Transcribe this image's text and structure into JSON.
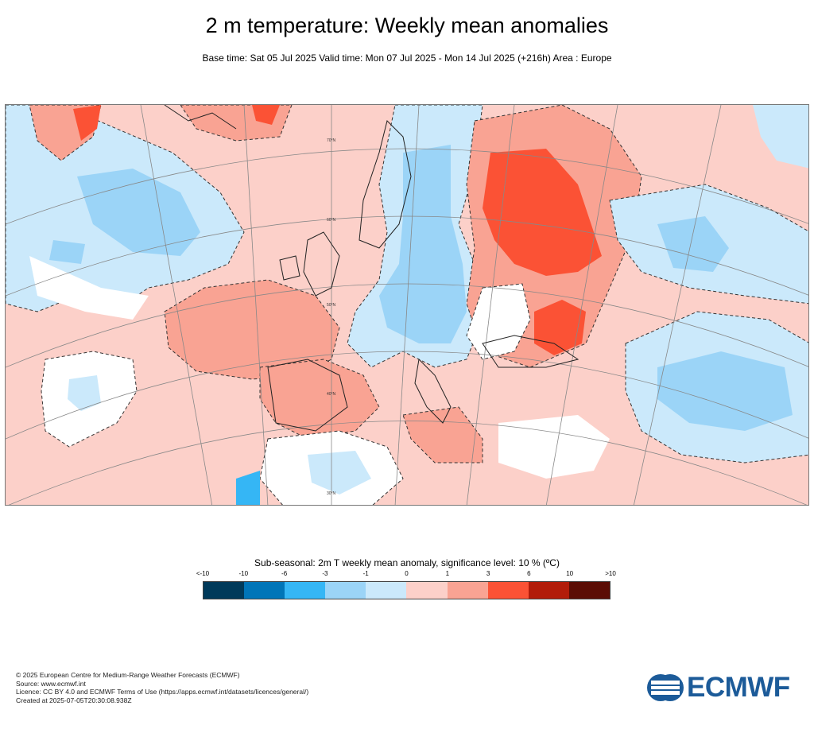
{
  "header": {
    "title": "2 m temperature: Weekly mean anomalies",
    "subtitle": "Base time: Sat 05 Jul 2025 Valid time: Mon 07 Jul 2025 - Mon 14 Jul 2025 (+216h) Area : Europe"
  },
  "map": {
    "lat_labels": [
      "70°N",
      "60°N",
      "50°N",
      "40°N",
      "30°N"
    ],
    "colors": {
      "light_blue": "#cbe9fb",
      "mid_blue": "#9bd4f7",
      "strong_blue": "#35b6f5",
      "light_red": "#fcd0c9",
      "mid_red": "#f9a393",
      "strong_red": "#fb5235",
      "white": "#ffffff"
    }
  },
  "legend": {
    "title": "Sub-seasonal: 2m T weekly mean anomaly, significance level: 10 % (ºC)",
    "ticks": [
      "<-10",
      "-10",
      "-6",
      "-3",
      "-1",
      "0",
      "1",
      "3",
      "6",
      "10",
      ">10"
    ],
    "colors": [
      "#003a5a",
      "#0075b8",
      "#35b6f5",
      "#9bd4f7",
      "#cbe9fb",
      "#fcd0c9",
      "#f9a393",
      "#fb5235",
      "#b21c0a",
      "#5b0d05"
    ]
  },
  "footer": {
    "line1": "© 2025 European Centre for Medium-Range Weather Forecasts (ECMWF)",
    "line2": "Source: www.ecmwf.int",
    "line3": "Licence: CC BY 4.0 and ECMWF Terms of Use (https://apps.ecmwf.int/datasets/licences/general/)",
    "line4": "Created at 2025-07-05T20:30:08.938Z"
  },
  "logo": {
    "text": "ECMWF",
    "color": "#1c5b99"
  }
}
